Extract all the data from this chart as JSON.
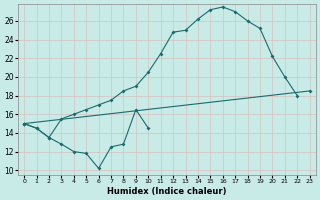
{
  "xlabel": "Humidex (Indice chaleur)",
  "xlim": [
    -0.5,
    23.5
  ],
  "ylim": [
    9.5,
    27.8
  ],
  "yticks": [
    10,
    12,
    14,
    16,
    18,
    20,
    22,
    24,
    26
  ],
  "xticks": [
    0,
    1,
    2,
    3,
    4,
    5,
    6,
    7,
    8,
    9,
    10,
    11,
    12,
    13,
    14,
    15,
    16,
    17,
    18,
    19,
    20,
    21,
    22,
    23
  ],
  "bg_color": "#c8ebe8",
  "line_color": "#1a6b6b",
  "curve1_x": [
    0,
    1,
    2,
    3,
    4,
    5,
    6,
    7,
    8,
    9,
    10
  ],
  "curve1_y": [
    15.0,
    14.5,
    13.5,
    12.8,
    12.0,
    11.8,
    10.2,
    12.5,
    12.8,
    16.5,
    14.5
  ],
  "curve2_x": [
    0,
    1,
    2,
    3,
    4,
    5,
    6,
    7,
    8,
    9,
    10,
    11,
    12,
    13,
    14,
    15,
    16,
    17,
    18,
    19,
    20,
    21,
    22
  ],
  "curve2_y": [
    15.0,
    14.5,
    13.5,
    15.5,
    16.0,
    16.5,
    17.0,
    17.5,
    18.5,
    19.0,
    20.5,
    22.5,
    24.8,
    25.0,
    26.2,
    27.2,
    27.5,
    27.0,
    26.0,
    25.2,
    22.2,
    20.0,
    18.0
  ],
  "curve3_x": [
    0,
    23
  ],
  "curve3_y": [
    15.0,
    18.5
  ]
}
